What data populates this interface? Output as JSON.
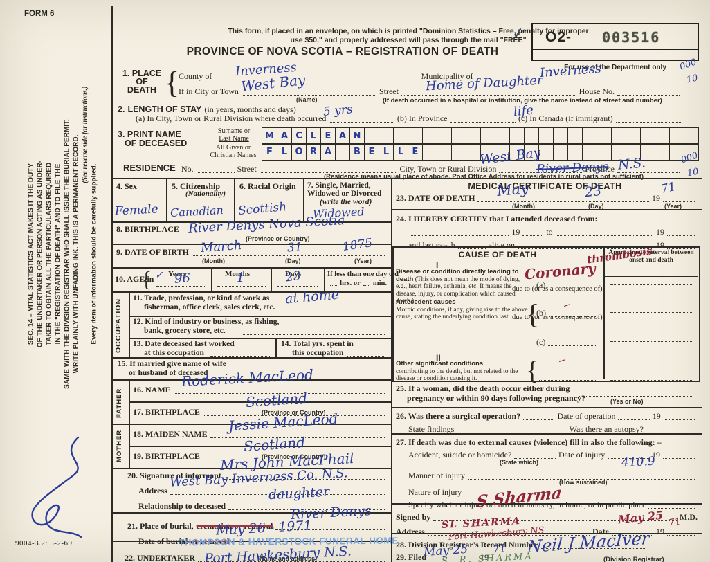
{
  "form_no": "FORM 6",
  "plate_code": "9004-3.2: 5-2-69",
  "margin": {
    "sec14": [
      "SEC. 14 – VITAL STATISTICS ACT MAKES IT THE DUTY",
      "OF THE UNDERTAKER OR PERSON ACTING AS UNDER-",
      "TAKER TO OBTAIN ALL THE PARTICULARS REQUIRED",
      "IN THE \"REGISTRATION OF DEATH\" AND TO FILE THE",
      "SAME WITH THE DIVISION REGISTRAR WHO SHALL ISSUE THE BURIAL PERMIT.",
      "WRITE PLAINLY WITH UNFADING INK. THIS IS A PERMANENT RECORD."
    ],
    "see_reverse": "(See reverse side for instructions.)",
    "every_item": "Every item of information should be carefully supplied."
  },
  "header": {
    "mail1": "This form, if placed in an envelope, on which is printed \"Dominion Statistics – Free, penalty for improper",
    "mail2": "use $50,\" and properly addressed will pass through the mail \"FREE\"",
    "title": "PROVINCE OF NOVA SCOTIA – REGISTRATION OF DEATH",
    "check": "✓",
    "stamp_prefix": "O2-",
    "stamp_no": "003516",
    "dept": "For use of the Department only",
    "code1": "000",
    "code2": "10"
  },
  "subs": {
    "month": "(Month)",
    "day": "(Day)",
    "year": "(Year)",
    "prov": "(Province or Country)",
    "name": "(Name)"
  },
  "place": {
    "no": "1.",
    "l1": "PLACE",
    "l2": "OF",
    "l3": "DEATH",
    "county_lbl": "County of",
    "county": "Inverness",
    "muni_lbl": "Municipality of",
    "muni": "Inverness",
    "city_lbl": "If in City or Town",
    "city": "West Bay",
    "street_lbl": "Street",
    "street": "Home of Daughter",
    "house_lbl": "House No.",
    "hosp_note": "(If death occurred in a hospital or institution, give the name instead of street and number)",
    "code1": "000",
    "code2": "10"
  },
  "stay": {
    "no": "2.",
    "lbl": "LENGTH OF STAY",
    "sublbl": "(in years, months and days)",
    "a_lbl": "(a) In City, Town or Rural Division where death occurred",
    "a": "5 yrs",
    "b_lbl": "(b) In Province",
    "b": "life",
    "c_lbl": "(c) In Canada (if immigrant)"
  },
  "pname": {
    "no": "3.",
    "l1": "PRINT NAME",
    "l2": "OF DECEASED",
    "sur1": "Surname or",
    "sur2": "Last Name",
    "giv1": "All Given or",
    "giv2": "Christian Names",
    "surname": "MACLEAN",
    "given": "FLORA BELLE"
  },
  "residence": {
    "lbl": "RESIDENCE",
    "no_lbl": "No.",
    "street_lbl": "Street",
    "div_lbl": "City, Town or Rural Division",
    "div": "West Bay",
    "div_struck": "River Denys",
    "prov_lbl": "Province",
    "prov": "N.S.",
    "code1": "000",
    "code2": "10",
    "note": "(Residence means usual place of abode. Post Office Address for residents in rural parts not sufficient)"
  },
  "left": {
    "f4_lbl": "4. Sex",
    "f4": "Female",
    "f5_lbl": "5. Citizenship",
    "f5_sub": "(Nationality)",
    "f5": "Canadian",
    "f6_lbl": "6. Racial Origin",
    "f6": "Scottish",
    "f7_l1": "7. Single, Married,",
    "f7_l2": "Widowed or Divorced",
    "f7_sub": "(write the word)",
    "f7": "Widowed",
    "f8_lbl": "8. BIRTHPLACE",
    "f8": "River Denys Nova Scotia",
    "f9_lbl": "9. DATE OF BIRTH",
    "f9_m": "March",
    "f9_d": "31",
    "f9_y": "1875",
    "f10_lbl": "10. AGE in",
    "years": "Years",
    "months": "Months",
    "days": "Days",
    "f10_y": "96",
    "f10_m": "1",
    "f10_d": "23",
    "check": "✓",
    "less_lbl": "If less than one day old",
    "hrs": "hrs. or",
    "min": "min.",
    "occupation": "OCCUPATION",
    "f11_l1": "11. Trade, profession, or kind of work as",
    "f11_l2": "fisherman, office clerk, sales clerk, etc.",
    "f11": "at home",
    "f12_l1": "12. Kind of industry or business, as fishing,",
    "f12_l2": "bank, grocery store, etc.",
    "f13_l1": "13. Date deceased last worked",
    "f13_l2": "at this occupation",
    "f14_l1": "14. Total yrs. spent in",
    "f14_l2": "this occupation",
    "f15_l1": "15. If married give name of wife",
    "f15_l2": "or husband of deceased",
    "father": "FATHER",
    "mother": "MOTHER",
    "f16_lbl": "16. NAME",
    "f16": "Roderick MacLeod",
    "f17_lbl": "17. BIRTHPLACE",
    "f17": "Scotland",
    "f18_lbl": "18. MAIDEN NAME",
    "f18": "Jessie MacLeod",
    "f19_lbl": "19. BIRTHPLACE",
    "f19": "Scotland",
    "f20_lbl": "20. Signature of informant",
    "f20": "Mrs John MacPhail",
    "f20_addr_lbl": "Address",
    "f20_addr": "West Bay Inverness Co. N.S.",
    "f20_rel_lbl": "Relationship to deceased",
    "f20_rel": "daughter",
    "f21_lbl": "21. Place of burial,",
    "f21_struck": "cremation or removal",
    "f21": "River Denys",
    "f21b_lbl": "Date of burial",
    "f21b_struck": "or removal",
    "f21b": "May 26 - 1971",
    "f22_lbl": "22. UNDERTAKER",
    "f22_stamp": "THOMPSON & HAVERSTOCK FUNERAL HOME",
    "f22_sub": "(Name and address)",
    "f22_hw": "Port Hawkesbury N.S."
  },
  "med": {
    "title": "MEDICAL CERTIFICATE OF DEATH",
    "f23_lbl": "23. DATE OF DEATH",
    "f23_m": "May",
    "f23_d": "23",
    "f23_y": "71",
    "y19": "19",
    "f24_lbl": "24. I HEREBY CERTIFY that I attended deceased from:",
    "to_lbl": "to",
    "last_lbl": "and last saw h",
    "alive_lbl": "alive on",
    "cause_title": "CAUSE OF DEATH",
    "interval": "Approximate interval be­tween onset and death",
    "sec1": "I",
    "disease_b": "Disease or condition directly lead­ing to death",
    "disease_r": "(This does not mean the mode of dying, e.g., heart fail­ure, asthenia, etc. It means the disease, injury, or complication which caused death.)",
    "a_lbl": "(a)",
    "due": "due to (or as a consequence of)",
    "cause_a1": "Coronary",
    "cause_a2": "thrombosis",
    "ante_b": "Antecedent causes",
    "ante_r": "Morbid conditions, if any, giving rise to the above cause, stating the underlying condition last.",
    "b_lbl": "(b)",
    "c_lbl": "(c)",
    "sec2": "II",
    "other_b": "Other significant conditions",
    "other_r": "contributing to the death, but not related to the disease or condi­tion causing it.",
    "dash": "–",
    "f25_l1": "25. If a woman, did the death occur either during",
    "f25_l2": "pregnancy or within 90 days following pregnancy?",
    "f25_sub": "(Yes or No)",
    "f26_l1": "26. Was there a surgical operation?",
    "f26_op": "Date of operation",
    "f26_find": "State findings",
    "f26_aut": "Was there an autopsy?",
    "f27_l1": "27. If death was due to external causes (violence) fill in also the following: –",
    "f27_acc": "Accident, suicide or homicide?",
    "f27_state": "(State which)",
    "f27_inj": "Date of injury",
    "f27_man": "Manner of injury",
    "f27_how": "(How sustained)",
    "f27_code": "410.9",
    "f27_nat": "Nature of injury",
    "f27_spec": "Specify whether injury occurred in industry, in home, or in public place",
    "signed_lbl": "Signed by",
    "md": "M.D.",
    "sig_red": "S Sharma",
    "addr_lbl": "Address",
    "addr_red1": "SL SHARMA",
    "addr_red2": "Port Hawkesbury NS",
    "date_lbl": "Date",
    "date_red": "May 25",
    "date_y": "71",
    "f28_lbl": "28. Division Registrar's Record Number",
    "f29_lbl": "29. Filed",
    "f29_date": "May 25",
    "f29_y": "71",
    "reg_sig": "Neil J MacIver",
    "reg_sub": "(Division Registrar)",
    "green_sig": "S. R. SHARMA"
  }
}
